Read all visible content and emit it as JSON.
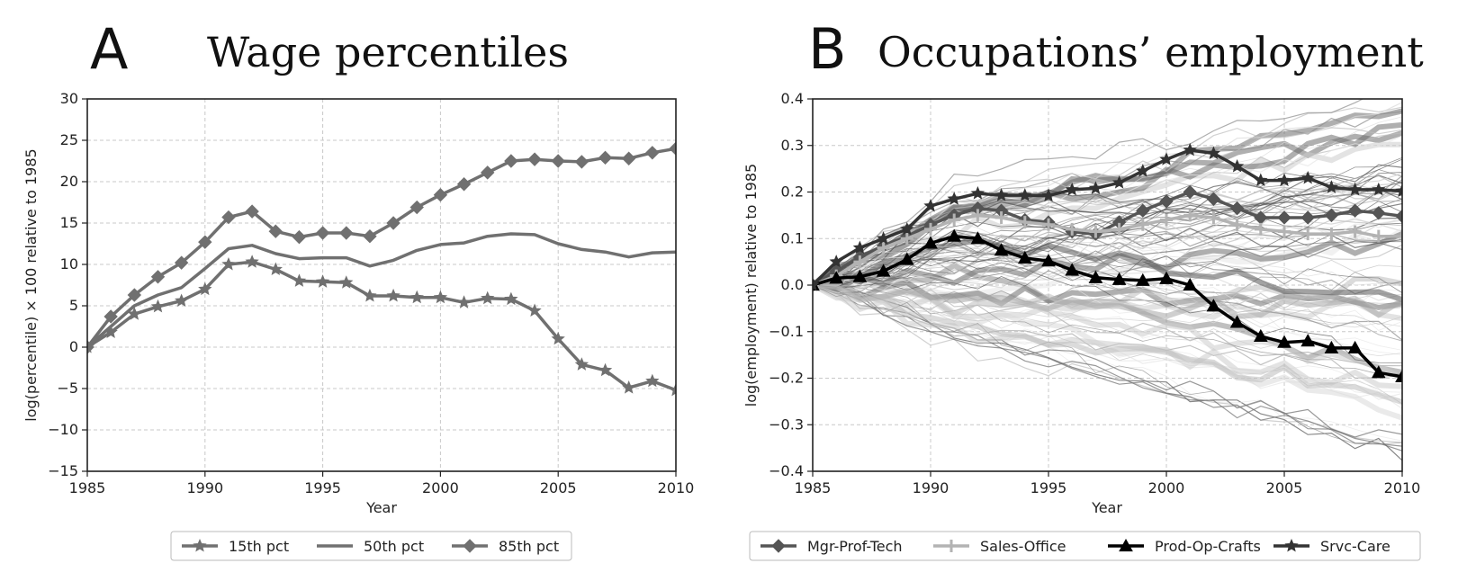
{
  "chart_data": [
    {
      "type": "line",
      "panel_letter": "A",
      "title": "Wage percentiles",
      "xlabel": "Year",
      "ylabel": "log(percentile) × 100 relative to 1985",
      "xlim": [
        1985,
        2010
      ],
      "ylim": [
        -15,
        30
      ],
      "xticks": [
        1985,
        1990,
        1995,
        2000,
        2005,
        2010
      ],
      "xtick_labels": [
        "1985",
        "1990",
        "1995",
        "2000",
        "2005",
        "2010"
      ],
      "yticks": [
        -15,
        -10,
        -5,
        0,
        5,
        10,
        15,
        20,
        25,
        30
      ],
      "ytick_labels": [
        "−15",
        "−10",
        "−5",
        "0",
        "5",
        "10",
        "15",
        "20",
        "25",
        "30"
      ],
      "grid": true,
      "legend_position": "below",
      "x": [
        1985,
        1986,
        1987,
        1988,
        1989,
        1990,
        1991,
        1992,
        1993,
        1994,
        1995,
        1996,
        1997,
        1998,
        1999,
        2000,
        2001,
        2002,
        2003,
        2004,
        2005,
        2006,
        2007,
        2008,
        2009,
        2010
      ],
      "series": [
        {
          "name": "15th pct",
          "marker": "star",
          "color": "#707070",
          "values": [
            0,
            1.8,
            4.0,
            4.9,
            5.6,
            7.0,
            10.0,
            10.3,
            9.4,
            8.0,
            7.9,
            7.8,
            6.2,
            6.2,
            6.0,
            6.0,
            5.4,
            5.9,
            5.8,
            4.4,
            1.0,
            -2.1,
            -2.8,
            -4.9,
            -4.1,
            -5.2
          ]
        },
        {
          "name": "50th pct",
          "marker": "none",
          "color": "#707070",
          "values": [
            0,
            2.5,
            5.0,
            6.3,
            7.2,
            9.5,
            11.9,
            12.3,
            11.3,
            10.7,
            10.8,
            10.8,
            9.8,
            10.5,
            11.7,
            12.4,
            12.6,
            13.4,
            13.7,
            13.6,
            12.5,
            11.8,
            11.5,
            10.9,
            11.4,
            11.5
          ]
        },
        {
          "name": "85th pct",
          "marker": "diamond",
          "color": "#707070",
          "values": [
            0,
            3.7,
            6.3,
            8.5,
            10.2,
            12.7,
            15.7,
            16.4,
            14.0,
            13.3,
            13.8,
            13.8,
            13.4,
            15.0,
            16.9,
            18.4,
            19.7,
            21.1,
            22.5,
            22.7,
            22.5,
            22.4,
            22.9,
            22.8,
            23.5,
            24.0
          ]
        }
      ]
    },
    {
      "type": "line",
      "panel_letter": "B",
      "title": "Occupations’ employment",
      "xlabel": "Year",
      "ylabel": "log(employment) relative to 1985",
      "xlim": [
        1985,
        2010
      ],
      "ylim": [
        -0.4,
        0.4
      ],
      "xticks": [
        1985,
        1990,
        1995,
        2000,
        2005,
        2010
      ],
      "xtick_labels": [
        "1985",
        "1990",
        "1995",
        "2000",
        "2005",
        "2010"
      ],
      "yticks": [
        -0.4,
        -0.3,
        -0.2,
        -0.1,
        0.0,
        0.1,
        0.2,
        0.3,
        0.4
      ],
      "ytick_labels": [
        "−0.4",
        "−0.3",
        "−0.2",
        "−0.1",
        "0.0",
        "0.1",
        "0.2",
        "0.3",
        "0.4"
      ],
      "grid": true,
      "legend_position": "below",
      "x": [
        1985,
        1986,
        1987,
        1988,
        1989,
        1990,
        1991,
        1992,
        1993,
        1994,
        1995,
        1996,
        1997,
        1998,
        1999,
        2000,
        2001,
        2002,
        2003,
        2004,
        2005,
        2006,
        2007,
        2008,
        2009,
        2010
      ],
      "series": [
        {
          "name": "Mgr-Prof-Tech",
          "marker": "diamond",
          "color": "#555555",
          "values": [
            0,
            0.03,
            0.06,
            0.085,
            0.105,
            0.13,
            0.15,
            0.165,
            0.16,
            0.14,
            0.135,
            0.115,
            0.11,
            0.135,
            0.16,
            0.18,
            0.2,
            0.185,
            0.165,
            0.145,
            0.145,
            0.145,
            0.15,
            0.16,
            0.155,
            0.148
          ]
        },
        {
          "name": "Sales-Office",
          "marker": "plus",
          "color": "#b3b3b3",
          "values": [
            0,
            0.02,
            0.05,
            0.08,
            0.1,
            0.12,
            0.14,
            0.15,
            0.145,
            0.135,
            0.13,
            0.12,
            0.115,
            0.12,
            0.13,
            0.14,
            0.15,
            0.145,
            0.13,
            0.12,
            0.115,
            0.11,
            0.11,
            0.115,
            0.105,
            0.105
          ]
        },
        {
          "name": "Prod-Op-Crafts",
          "marker": "triangle",
          "color": "#000000",
          "values": [
            0,
            0.015,
            0.018,
            0.03,
            0.055,
            0.09,
            0.105,
            0.1,
            0.075,
            0.058,
            0.052,
            0.032,
            0.016,
            0.012,
            0.01,
            0.014,
            0.0,
            -0.045,
            -0.08,
            -0.11,
            -0.123,
            -0.12,
            -0.135,
            -0.135,
            -0.188,
            -0.197
          ]
        },
        {
          "name": "Srvc-Care",
          "marker": "star",
          "color": "#333333",
          "values": [
            0,
            0.05,
            0.08,
            0.1,
            0.12,
            0.17,
            0.185,
            0.197,
            0.193,
            0.193,
            0.192,
            0.205,
            0.208,
            0.22,
            0.245,
            0.27,
            0.29,
            0.283,
            0.255,
            0.225,
            0.225,
            0.23,
            0.21,
            0.205,
            0.205,
            0.202
          ]
        }
      ]
    }
  ]
}
